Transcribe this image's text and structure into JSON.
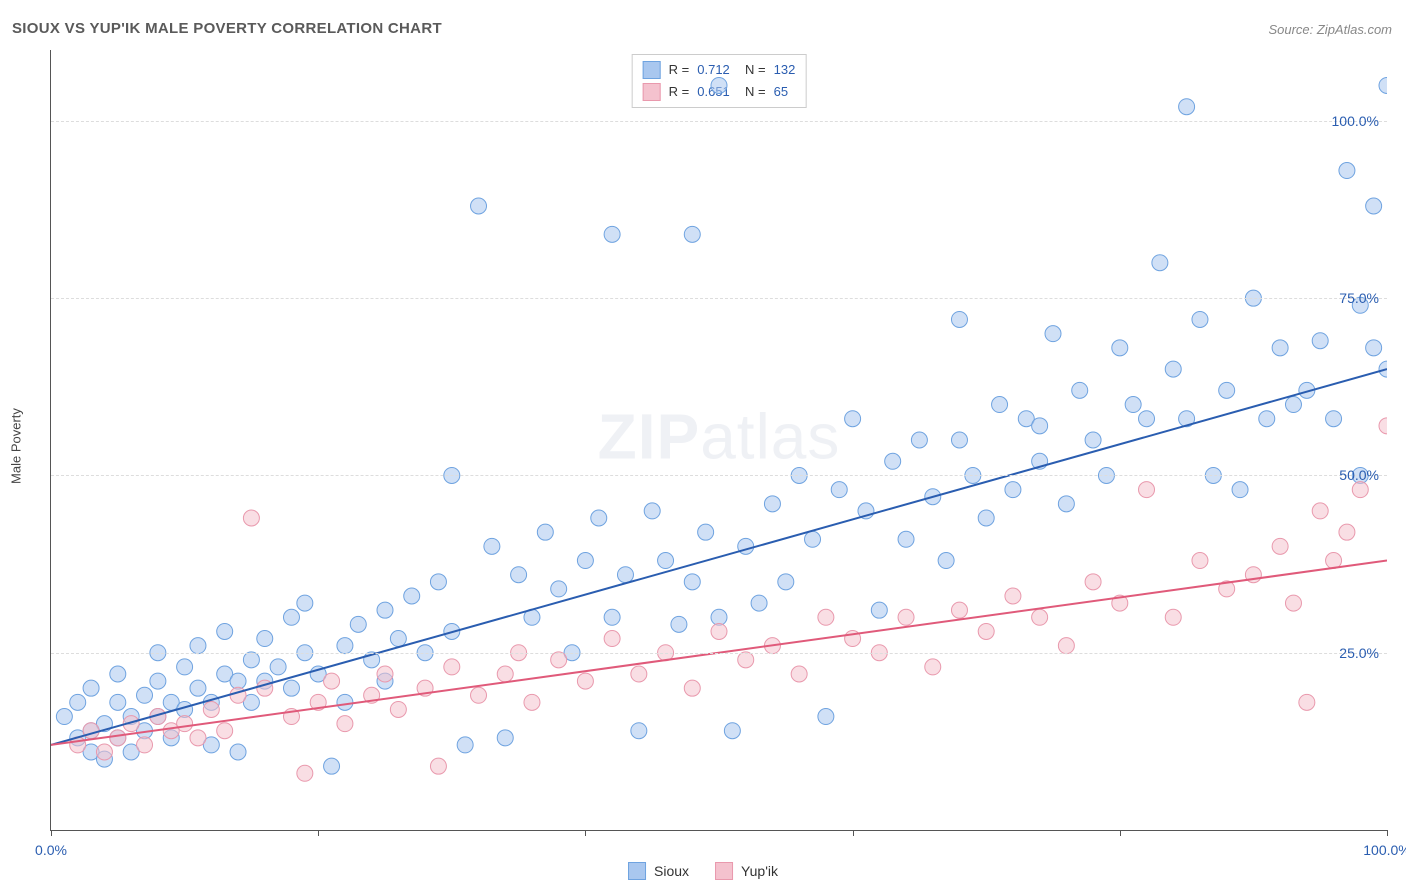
{
  "title": "SIOUX VS YUP'IK MALE POVERTY CORRELATION CHART",
  "source_label": "Source: ZipAtlas.com",
  "watermark": {
    "bold": "ZIP",
    "rest": "atlas"
  },
  "y_axis_label": "Male Poverty",
  "chart": {
    "type": "scatter",
    "xlim": [
      0,
      100
    ],
    "ylim": [
      0,
      110
    ],
    "x_ticks": [
      0,
      20,
      40,
      60,
      80,
      100
    ],
    "x_tick_labels": [
      "0.0%",
      "",
      "",
      "",
      "",
      "100.0%"
    ],
    "y_ticks": [
      25,
      50,
      75,
      100
    ],
    "y_tick_labels": [
      "25.0%",
      "50.0%",
      "75.0%",
      "100.0%"
    ],
    "background_color": "#ffffff",
    "grid_color": "#dddddd",
    "axis_color": "#555555",
    "tick_label_color": "#2a5db0",
    "marker_radius": 8,
    "marker_opacity": 0.55,
    "line_width": 2,
    "series": [
      {
        "name": "Sioux",
        "color_fill": "#a9c7ef",
        "color_stroke": "#6fa3e0",
        "line_color": "#2a5db0",
        "R": "0.712",
        "N": "132",
        "trend": {
          "x1": 0,
          "y1": 12,
          "x2": 100,
          "y2": 65
        },
        "points": [
          [
            1,
            16
          ],
          [
            2,
            13
          ],
          [
            2,
            18
          ],
          [
            3,
            11
          ],
          [
            3,
            14
          ],
          [
            3,
            20
          ],
          [
            4,
            15
          ],
          [
            4,
            10
          ],
          [
            5,
            18
          ],
          [
            5,
            13
          ],
          [
            5,
            22
          ],
          [
            6,
            16
          ],
          [
            6,
            11
          ],
          [
            7,
            19
          ],
          [
            7,
            14
          ],
          [
            8,
            21
          ],
          [
            8,
            16
          ],
          [
            8,
            25
          ],
          [
            9,
            18
          ],
          [
            9,
            13
          ],
          [
            10,
            23
          ],
          [
            10,
            17
          ],
          [
            11,
            20
          ],
          [
            11,
            26
          ],
          [
            12,
            18
          ],
          [
            12,
            12
          ],
          [
            13,
            22
          ],
          [
            13,
            28
          ],
          [
            14,
            21
          ],
          [
            14,
            11
          ],
          [
            15,
            24
          ],
          [
            15,
            18
          ],
          [
            16,
            27
          ],
          [
            16,
            21
          ],
          [
            17,
            23
          ],
          [
            18,
            30
          ],
          [
            18,
            20
          ],
          [
            19,
            32
          ],
          [
            19,
            25
          ],
          [
            20,
            22
          ],
          [
            21,
            9
          ],
          [
            22,
            26
          ],
          [
            22,
            18
          ],
          [
            23,
            29
          ],
          [
            24,
            24
          ],
          [
            25,
            31
          ],
          [
            25,
            21
          ],
          [
            26,
            27
          ],
          [
            27,
            33
          ],
          [
            28,
            25
          ],
          [
            29,
            35
          ],
          [
            30,
            28
          ],
          [
            30,
            50
          ],
          [
            31,
            12
          ],
          [
            32,
            88
          ],
          [
            33,
            40
          ],
          [
            34,
            13
          ],
          [
            35,
            36
          ],
          [
            36,
            30
          ],
          [
            37,
            42
          ],
          [
            38,
            34
          ],
          [
            39,
            25
          ],
          [
            40,
            38
          ],
          [
            41,
            44
          ],
          [
            42,
            30
          ],
          [
            42,
            84
          ],
          [
            43,
            36
          ],
          [
            44,
            14
          ],
          [
            45,
            45
          ],
          [
            46,
            38
          ],
          [
            47,
            29
          ],
          [
            48,
            35
          ],
          [
            48,
            84
          ],
          [
            49,
            42
          ],
          [
            50,
            30
          ],
          [
            50,
            105
          ],
          [
            51,
            14
          ],
          [
            52,
            40
          ],
          [
            53,
            32
          ],
          [
            54,
            46
          ],
          [
            55,
            35
          ],
          [
            56,
            50
          ],
          [
            57,
            41
          ],
          [
            58,
            16
          ],
          [
            59,
            48
          ],
          [
            60,
            58
          ],
          [
            61,
            45
          ],
          [
            62,
            31
          ],
          [
            63,
            52
          ],
          [
            64,
            41
          ],
          [
            65,
            55
          ],
          [
            66,
            47
          ],
          [
            67,
            38
          ],
          [
            68,
            72
          ],
          [
            69,
            50
          ],
          [
            70,
            44
          ],
          [
            71,
            60
          ],
          [
            72,
            48
          ],
          [
            73,
            58
          ],
          [
            74,
            52
          ],
          [
            75,
            70
          ],
          [
            76,
            46
          ],
          [
            77,
            62
          ],
          [
            78,
            55
          ],
          [
            79,
            50
          ],
          [
            80,
            68
          ],
          [
            81,
            60
          ],
          [
            82,
            58
          ],
          [
            83,
            80
          ],
          [
            84,
            65
          ],
          [
            85,
            58
          ],
          [
            86,
            72
          ],
          [
            87,
            50
          ],
          [
            88,
            62
          ],
          [
            89,
            48
          ],
          [
            90,
            75
          ],
          [
            91,
            58
          ],
          [
            92,
            68
          ],
          [
            93,
            60
          ],
          [
            94,
            62
          ],
          [
            95,
            69
          ],
          [
            96,
            58
          ],
          [
            97,
            93
          ],
          [
            98,
            50
          ],
          [
            98,
            74
          ],
          [
            99,
            68
          ],
          [
            99,
            88
          ],
          [
            100,
            105
          ],
          [
            100,
            65
          ],
          [
            85,
            102
          ],
          [
            74,
            57
          ],
          [
            68,
            55
          ]
        ]
      },
      {
        "name": "Yup'ik",
        "color_fill": "#f4c2ce",
        "color_stroke": "#e999ad",
        "line_color": "#e05a7a",
        "R": "0.651",
        "N": "65",
        "trend": {
          "x1": 0,
          "y1": 12,
          "x2": 100,
          "y2": 38
        },
        "points": [
          [
            2,
            12
          ],
          [
            3,
            14
          ],
          [
            4,
            11
          ],
          [
            5,
            13
          ],
          [
            6,
            15
          ],
          [
            7,
            12
          ],
          [
            8,
            16
          ],
          [
            9,
            14
          ],
          [
            10,
            15
          ],
          [
            11,
            13
          ],
          [
            12,
            17
          ],
          [
            13,
            14
          ],
          [
            14,
            19
          ],
          [
            15,
            44
          ],
          [
            16,
            20
          ],
          [
            18,
            16
          ],
          [
            19,
            8
          ],
          [
            20,
            18
          ],
          [
            21,
            21
          ],
          [
            22,
            15
          ],
          [
            24,
            19
          ],
          [
            25,
            22
          ],
          [
            26,
            17
          ],
          [
            28,
            20
          ],
          [
            29,
            9
          ],
          [
            30,
            23
          ],
          [
            32,
            19
          ],
          [
            34,
            22
          ],
          [
            35,
            25
          ],
          [
            36,
            18
          ],
          [
            38,
            24
          ],
          [
            40,
            21
          ],
          [
            42,
            27
          ],
          [
            44,
            22
          ],
          [
            46,
            25
          ],
          [
            48,
            20
          ],
          [
            50,
            28
          ],
          [
            52,
            24
          ],
          [
            54,
            26
          ],
          [
            56,
            22
          ],
          [
            58,
            30
          ],
          [
            60,
            27
          ],
          [
            62,
            25
          ],
          [
            64,
            30
          ],
          [
            66,
            23
          ],
          [
            68,
            31
          ],
          [
            70,
            28
          ],
          [
            72,
            33
          ],
          [
            74,
            30
          ],
          [
            76,
            26
          ],
          [
            78,
            35
          ],
          [
            80,
            32
          ],
          [
            82,
            48
          ],
          [
            84,
            30
          ],
          [
            86,
            38
          ],
          [
            88,
            34
          ],
          [
            90,
            36
          ],
          [
            92,
            40
          ],
          [
            93,
            32
          ],
          [
            94,
            18
          ],
          [
            95,
            45
          ],
          [
            96,
            38
          ],
          [
            97,
            42
          ],
          [
            98,
            48
          ],
          [
            100,
            57
          ]
        ]
      }
    ]
  },
  "legend_bottom": [
    {
      "label": "Sioux",
      "fill": "#a9c7ef",
      "stroke": "#6fa3e0"
    },
    {
      "label": "Yup'ik",
      "fill": "#f4c2ce",
      "stroke": "#e999ad"
    }
  ]
}
